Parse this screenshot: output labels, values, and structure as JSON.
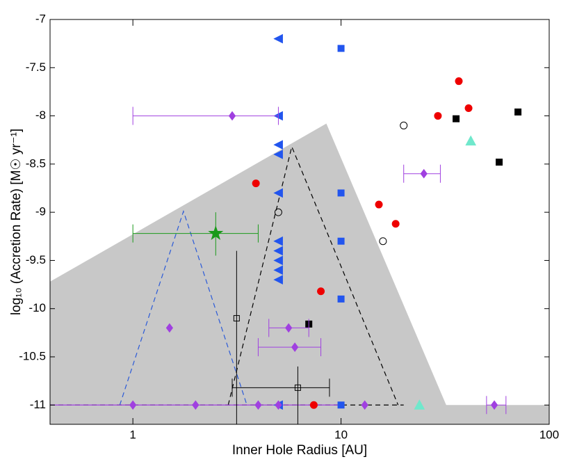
{
  "chart_data": {
    "type": "scatter",
    "xlabel": "Inner Hole Radius [AU]",
    "ylabel": "log₁₀ (Accretion Rate) [M☉ yr⁻¹]",
    "xscale": "log",
    "xlim": [
      0.4,
      100
    ],
    "ylim": [
      -11.2,
      -7
    ],
    "xticks": [
      1,
      10,
      100
    ],
    "yticks": [
      -7,
      -7.5,
      -8,
      -8.5,
      -9,
      -9.5,
      -10,
      -10.5,
      -11
    ],
    "regions": [
      {
        "color": "#c8c8c8",
        "x": [
          0.4,
          0.4,
          8.5,
          32,
          100,
          100
        ],
        "y": [
          -11.2,
          -9.72,
          -8.08,
          -11,
          -11,
          -11.2
        ]
      }
    ],
    "lines": [
      {
        "color": "#2a5ad8",
        "dash": true,
        "x": [
          0.865,
          1.75,
          3.53
        ],
        "y": [
          -11,
          -8.99,
          -11
        ]
      },
      {
        "color": "#000000",
        "dash": true,
        "x": [
          2.87,
          5.8,
          18.8
        ],
        "y": [
          -11,
          -8.32,
          -11
        ]
      },
      {
        "color": "#000000",
        "dash": true,
        "x": [
          0.4,
          20
        ],
        "y": [
          -11,
          -11
        ]
      },
      {
        "color": "#a040e0",
        "dash": false,
        "x": [
          0.4,
          10
        ],
        "y": [
          -11,
          -11
        ]
      }
    ],
    "series": [
      {
        "marker": "tri-left",
        "color": "#2255ee",
        "x": [
          5,
          5,
          5,
          5,
          5,
          5,
          5,
          5,
          5,
          5,
          5
        ],
        "y": [
          -7.2,
          -8,
          -8.3,
          -8.4,
          -8.8,
          -9.3,
          -9.4,
          -9.5,
          -9.6,
          -9.7,
          -11
        ]
      },
      {
        "marker": "square",
        "color": "#2255ee",
        "x": [
          10,
          10,
          10,
          10,
          10
        ],
        "y": [
          -7.3,
          -8.8,
          -9.3,
          -9.9,
          -11
        ]
      },
      {
        "marker": "circle",
        "color": "#ee0000",
        "x": [
          3.9,
          15.2,
          18.3,
          8.0,
          7.4,
          29.2,
          36.8,
          41
        ],
        "y": [
          -8.7,
          -8.92,
          -9.12,
          -9.82,
          -11,
          -8.0,
          -7.64,
          -7.92
        ]
      },
      {
        "marker": "square",
        "color": "#000000",
        "x": [
          35.7,
          70.8,
          57.5,
          7.0
        ],
        "y": [
          -8.03,
          -7.96,
          -8.48,
          -10.16
        ]
      },
      {
        "marker": "open-circle",
        "color": "#000000",
        "x": [
          20,
          5,
          15.9
        ],
        "y": [
          -8.1,
          -9.0,
          -9.3
        ]
      },
      {
        "marker": "tri-up",
        "color": "#70e8cc",
        "x": [
          42,
          23.8
        ],
        "y": [
          -8.26,
          -11
        ]
      },
      {
        "marker": "diamond",
        "color": "#a040e0",
        "x": [
          3.0,
          25,
          6.0,
          5.6,
          1.5,
          1,
          2,
          4,
          5,
          13,
          54.5
        ],
        "y": [
          -8,
          -8.6,
          -10.4,
          -10.2,
          -10.2,
          -11,
          -11,
          -11,
          -11,
          -11,
          -11
        ],
        "xerr_low": [
          1,
          20,
          4,
          4.5,
          null,
          null,
          null,
          null,
          null,
          null,
          50
        ],
        "xerr_high": [
          5,
          30,
          8,
          7,
          null,
          null,
          null,
          null,
          null,
          null,
          62
        ]
      },
      {
        "marker": "star",
        "color": "#1a9a1a",
        "x": [
          2.5
        ],
        "y": [
          -9.22
        ],
        "xerr_low": [
          1
        ],
        "xerr_high": [
          4
        ],
        "yerr_low": [
          -9.45
        ],
        "yerr_high": [
          -9.0
        ]
      },
      {
        "marker": "open-square",
        "color": "#000000",
        "x": [
          3.15,
          6.2
        ],
        "y": [
          -10.1,
          -10.82
        ],
        "xerr_low": [
          null,
          3
        ],
        "xerr_high": [
          null,
          8.8
        ],
        "yerr_low": [
          -11.2,
          -11.2
        ],
        "yerr_high": [
          -9.4,
          -10.6
        ]
      }
    ]
  }
}
